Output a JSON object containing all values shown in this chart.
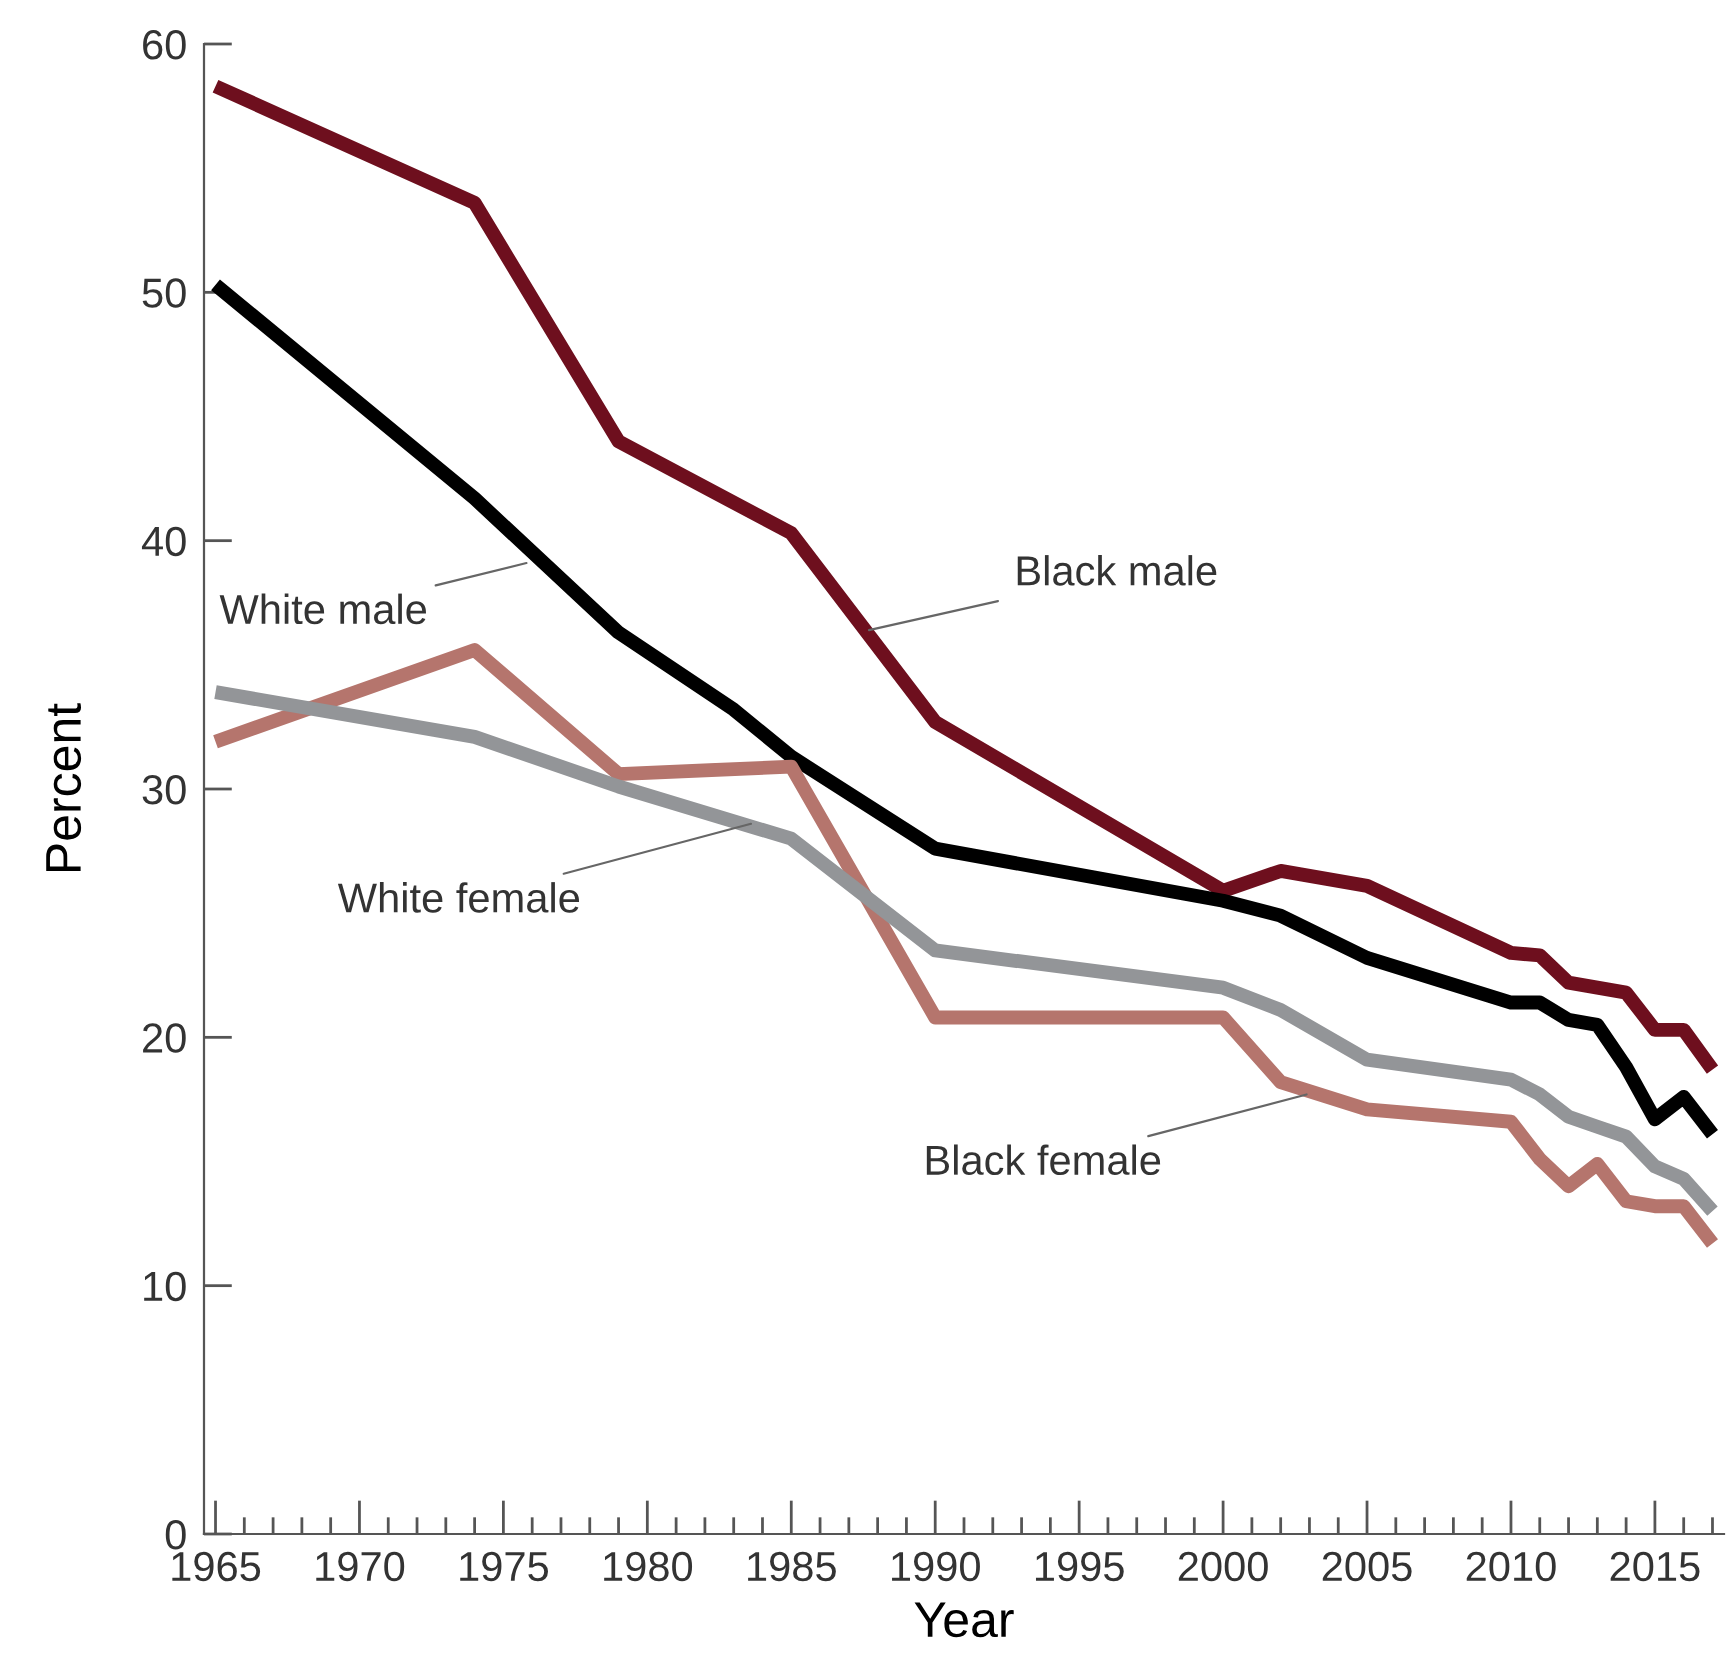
{
  "chart_data": {
    "type": "line",
    "xlabel": "Year",
    "ylabel": "Percent",
    "x": [
      1965,
      1974,
      1979,
      1983,
      1985,
      1990,
      2000,
      2002,
      2005,
      2010,
      2011,
      2012,
      2013,
      2014,
      2015,
      2016,
      2017
    ],
    "series": [
      {
        "color": "#6e0f1e",
        "values": [
          58.3,
          53.6,
          44.0,
          null,
          40.3,
          32.7,
          25.9,
          26.7,
          26.1,
          23.4,
          23.3,
          22.2,
          22.0,
          21.8,
          20.3,
          20.3,
          18.7
        ]
      },
      {
        "color": "#000000",
        "values": [
          50.3,
          41.7,
          36.3,
          33.2,
          31.3,
          27.6,
          25.5,
          24.9,
          23.2,
          21.4,
          21.4,
          20.7,
          20.5,
          18.8,
          16.7,
          17.6,
          16.1
        ]
      },
      {
        "color": "#b5756d",
        "values": [
          31.9,
          35.6,
          30.6,
          null,
          30.9,
          20.8,
          20.8,
          18.2,
          17.1,
          16.6,
          15.1,
          14.0,
          14.9,
          13.4,
          13.2,
          13.2,
          11.7
        ]
      },
      {
        "color": "#939598",
        "values": [
          33.9,
          32.1,
          30.1,
          null,
          28.0,
          23.5,
          22.0,
          21.1,
          19.1,
          18.3,
          17.7,
          16.8,
          16.4,
          16.0,
          14.8,
          14.3,
          13.0
        ]
      }
    ],
    "annotations": [
      {
        "text": "White male",
        "x": 1975.8,
        "y": 39.1
      },
      {
        "text": "Black male",
        "x": 1987.7,
        "y": 36.4
      },
      {
        "text": "White female",
        "x": 1983.6,
        "y": 28.6
      },
      {
        "text": "Black female",
        "x": 2002.9,
        "y": 17.7
      }
    ],
    "xlim": [
      1964.6,
      2017.4
    ],
    "ylim": [
      0,
      60
    ],
    "xticks": [
      1965,
      {
        "value": 1966,
        "label": null
      },
      {
        "value": 1967,
        "label": null
      },
      {
        "value": 1968,
        "label": null
      },
      {
        "value": 1969,
        "label": null
      },
      1970,
      {
        "value": 1971,
        "label": null
      },
      {
        "value": 1972,
        "label": null
      },
      {
        "value": 1973,
        "label": null
      },
      {
        "value": 1974,
        "label": null
      },
      1975,
      {
        "value": 1976,
        "label": null
      },
      {
        "value": 1977,
        "label": null
      },
      {
        "value": 1978,
        "label": null
      },
      {
        "value": 1979,
        "label": null
      },
      1980,
      {
        "value": 1981,
        "label": null
      },
      {
        "value": 1982,
        "label": null
      },
      {
        "value": 1983,
        "label": null
      },
      {
        "value": 1984,
        "label": null
      },
      1985,
      {
        "value": 1986,
        "label": null
      },
      {
        "value": 1987,
        "label": null
      },
      {
        "value": 1988,
        "label": null
      },
      {
        "value": 1989,
        "label": null
      },
      1990,
      {
        "value": 1991,
        "label": null
      },
      {
        "value": 1992,
        "label": null
      },
      {
        "value": 1993,
        "label": null
      },
      {
        "value": 1994,
        "label": null
      },
      1995,
      {
        "value": 1996,
        "label": null
      },
      {
        "value": 1997,
        "label": null
      },
      {
        "value": 1998,
        "label": null
      },
      {
        "value": 1999,
        "label": null
      },
      2000,
      {
        "value": 2001,
        "label": null
      },
      {
        "value": 2002,
        "label": null
      },
      {
        "value": 2003,
        "label": null
      },
      {
        "value": 2004,
        "label": null
      },
      2005,
      {
        "value": 2006,
        "label": null
      },
      {
        "value": 2007,
        "label": null
      },
      {
        "value": 2008,
        "label": null
      },
      {
        "value": 2009,
        "label": null
      },
      2010,
      {
        "value": 2011,
        "label": null
      },
      {
        "value": 2012,
        "label": null
      },
      {
        "value": 2013,
        "label": null
      },
      {
        "value": 2014,
        "label": null
      },
      2015,
      {
        "value": 2016,
        "label": null
      },
      {
        "value": 2017,
        "label": null
      }
    ],
    "yticks": [
      0,
      10,
      20,
      30,
      40,
      50,
      60
    ],
    "grid": false,
    "legend": false,
    "marker": "none",
    "line_style": "solid"
  }
}
